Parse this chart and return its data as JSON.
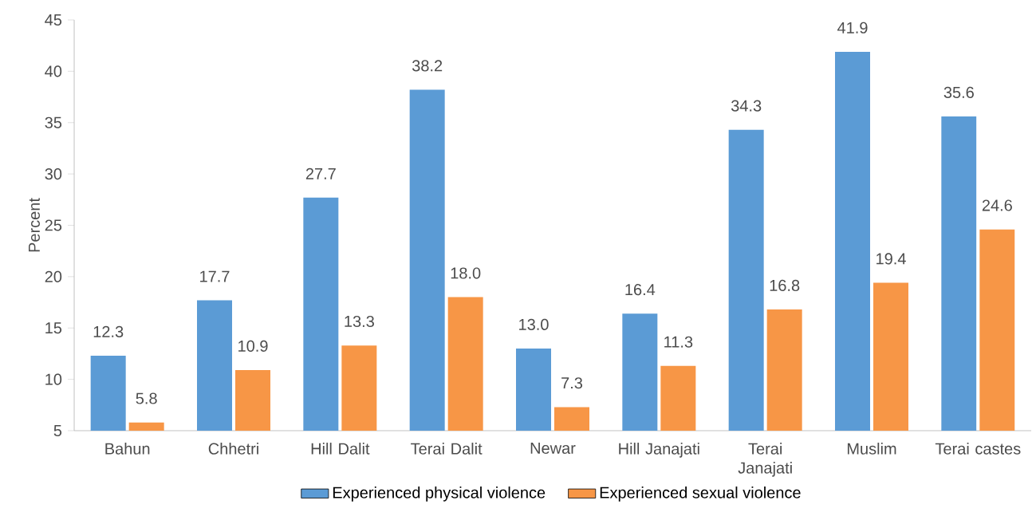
{
  "chart_data": {
    "type": "bar",
    "ylabel": "Percent",
    "categories": [
      "Bahun",
      "Chhetri",
      "Hill Dalit",
      "Terai Dalit",
      "Newar",
      "Hill Janajati",
      "Terai Janajati",
      "Muslim",
      "Terai castes"
    ],
    "series": [
      {
        "name": "Experienced physical violence",
        "color": "#5b9bd5",
        "values": [
          12.3,
          17.7,
          27.7,
          38.2,
          13.0,
          16.4,
          34.3,
          41.9,
          35.6
        ],
        "value_labels": [
          "12.3",
          "17.7",
          "27.7",
          "38.2",
          "13.0",
          "16.4",
          "34.3",
          "41.9",
          "35.6"
        ]
      },
      {
        "name": "Experienced sexual violence",
        "color": "#f79646",
        "values": [
          5.8,
          10.9,
          13.3,
          18.0,
          7.3,
          11.3,
          16.8,
          19.4,
          24.6
        ],
        "value_labels": [
          "5.8",
          "10.9",
          "13.3",
          "18.0",
          "7.3",
          "11.3",
          "16.8",
          "19.4",
          "24.6"
        ]
      }
    ],
    "ylim": [
      5,
      45
    ],
    "yticks": [
      5,
      10,
      15,
      20,
      25,
      30,
      35,
      40,
      45
    ],
    "legend": "bottom"
  }
}
